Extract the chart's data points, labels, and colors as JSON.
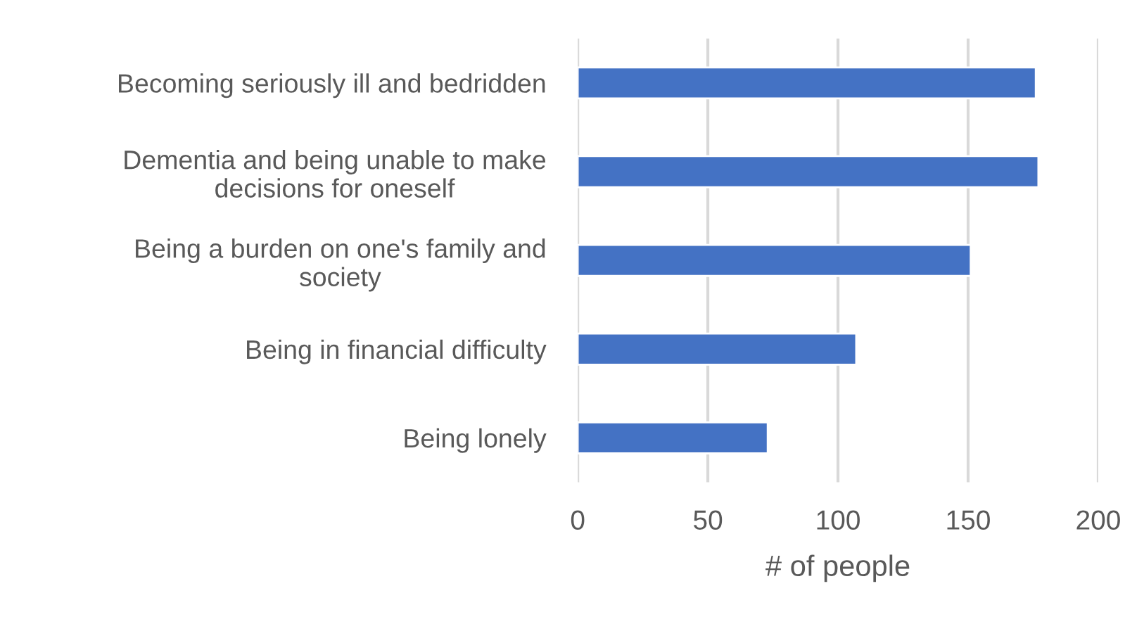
{
  "chart_data": {
    "type": "bar",
    "orientation": "horizontal",
    "xlabel": "# of people",
    "categories": [
      "Becoming seriously ill and bedridden",
      "Dementia and being unable to make\ndecisions for oneself",
      "Being a burden on one's family and\nsociety",
      "Being in financial difficulty",
      "Being lonely"
    ],
    "values": [
      176,
      177,
      151,
      107,
      73
    ],
    "color": "#4472c4",
    "xlim": [
      0,
      200
    ],
    "xticks": [
      0,
      50,
      100,
      150,
      200
    ],
    "grid": "x"
  }
}
